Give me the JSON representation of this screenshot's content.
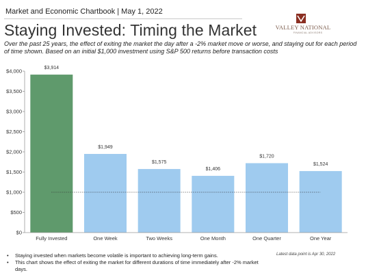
{
  "header": {
    "chartbook": "Market and Economic Chartbook | May 1, 2022",
    "title": "Staying Invested: Timing the Market",
    "subtitle": "Over the past 25 years, the effect of exiting the market the day after a -2% market move or worse, and staying out for each period of time shown. Based on an initial $1,000 investment using S&P 500 returns before transaction costs"
  },
  "logo": {
    "name": "VALLEY NATIONAL",
    "sub": "FINANCIAL ADVISORS",
    "colors": {
      "mark": "#8b2f22",
      "text": "#7a5a4a"
    }
  },
  "chart_data": {
    "type": "bar",
    "categories": [
      "Fully Invested",
      "One Week",
      "Two Weeks",
      "One Month",
      "One Quarter",
      "One Year"
    ],
    "values": [
      3914,
      1949,
      1575,
      1406,
      1720,
      1524
    ],
    "data_labels": [
      "$3,914",
      "$1,949",
      "$1,575",
      "$1,406",
      "$1,720",
      "$1,524"
    ],
    "ylim": [
      0,
      4000
    ],
    "yticks": [
      0,
      500,
      1000,
      1500,
      2000,
      2500,
      3000,
      3500,
      4000
    ],
    "ytick_labels": [
      "$0",
      "$500",
      "$1,000",
      "$1,500",
      "$2,000",
      "$2,500",
      "$3,000",
      "$3,500",
      "$4,000"
    ],
    "reference_line": {
      "value": 1000,
      "style": "dotted"
    },
    "grid": false,
    "colors": [
      "#5f9a6c",
      "#9fcbef",
      "#9fcbef",
      "#9fcbef",
      "#9fcbef",
      "#9fcbef"
    ],
    "axis_color": "#999999"
  },
  "footnotes": [
    "Staying invested when markets become volatile is important to achieving long-term gains.",
    "This chart shows the effect of exiting the market for different durations of time immediately after -2% market days."
  ],
  "note": "Latest data point is Apr 30, 2022"
}
